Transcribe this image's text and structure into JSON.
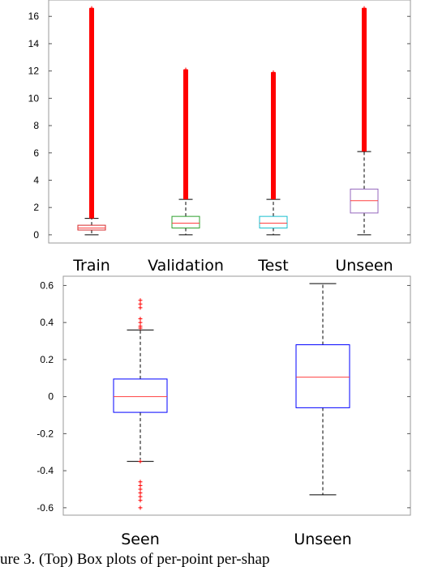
{
  "chart_data": [
    {
      "type": "box",
      "ylim": [
        -0.6,
        17.2
      ],
      "yticks": [
        0,
        2,
        4,
        6,
        8,
        10,
        12,
        14,
        16
      ],
      "categories": [
        "Train",
        "Validation",
        "Test",
        "Unseen"
      ],
      "boxes": [
        {
          "name": "Train",
          "color": "#d62728",
          "q1": 0.35,
          "median": 0.5,
          "q3": 0.7,
          "whisker_low": 0.0,
          "whisker_high": 1.2,
          "outliers_from": 1.2,
          "outliers_to": 16.6
        },
        {
          "name": "Validation",
          "color": "#2ca02c",
          "q1": 0.5,
          "median": 0.85,
          "q3": 1.35,
          "whisker_low": 0.0,
          "whisker_high": 2.6,
          "outliers_from": 2.6,
          "outliers_to": 12.1
        },
        {
          "name": "Test",
          "color": "#17becf",
          "q1": 0.5,
          "median": 0.85,
          "q3": 1.35,
          "whisker_low": 0.0,
          "whisker_high": 2.6,
          "outliers_from": 2.6,
          "outliers_to": 11.9
        },
        {
          "name": "Unseen",
          "color": "#9467bd",
          "q1": 1.6,
          "median": 2.5,
          "q3": 3.35,
          "whisker_low": 0.0,
          "whisker_high": 6.1,
          "outliers_from": 6.1,
          "outliers_to": 16.6
        }
      ]
    },
    {
      "type": "box",
      "ylim": [
        -0.64,
        0.65
      ],
      "yticks": [
        -0.6,
        -0.4,
        -0.2,
        0,
        0.2,
        0.4,
        0.6
      ],
      "categories": [
        "Seen",
        "Unseen"
      ],
      "boxes": [
        {
          "name": "Seen",
          "color": "#0000ff",
          "q1": -0.085,
          "median": 0.0,
          "q3": 0.095,
          "whisker_low": -0.35,
          "whisker_high": 0.36,
          "outliers": [
            0.52,
            0.5,
            0.48,
            0.42,
            0.4,
            0.38,
            0.37,
            -0.35,
            -0.46,
            -0.48,
            -0.5,
            -0.52,
            -0.54,
            -0.56,
            -0.6
          ]
        },
        {
          "name": "Unseen",
          "color": "#0000ff",
          "q1": -0.06,
          "median": 0.105,
          "q3": 0.28,
          "whisker_low": -0.53,
          "whisker_high": 0.61,
          "outliers": []
        }
      ]
    }
  ],
  "caption": "ure 3.     (Top) Box plots of per-point per-shap"
}
